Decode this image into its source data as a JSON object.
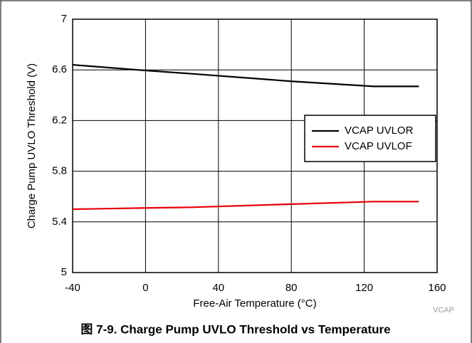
{
  "chart_data": {
    "type": "line",
    "title": "图 7-9. Charge Pump UVLO Threshold vs Temperature",
    "x_label": "Free-Air Temperature (°C)",
    "y_label": "Charge Pump UVLO Threshold (V)",
    "annotation": "VCAP",
    "x": [
      -40,
      0,
      25,
      80,
      125,
      150
    ],
    "series": [
      {
        "name": "VCAP UVLOR",
        "color": "#000000",
        "values": [
          6.64,
          6.595,
          6.57,
          6.51,
          6.47,
          6.47
        ]
      },
      {
        "name": "VCAP UVLOF",
        "color": "#e8000b",
        "values": [
          5.5,
          5.51,
          5.515,
          5.54,
          5.56,
          5.56
        ]
      }
    ],
    "xlim": [
      -40,
      160
    ],
    "xticks": [
      -40,
      0,
      40,
      80,
      120,
      160
    ],
    "ylim": [
      5,
      7
    ],
    "yticks": [
      5,
      5.4,
      5.8,
      6.2,
      6.6,
      7
    ],
    "grid": true,
    "legend": "right"
  }
}
